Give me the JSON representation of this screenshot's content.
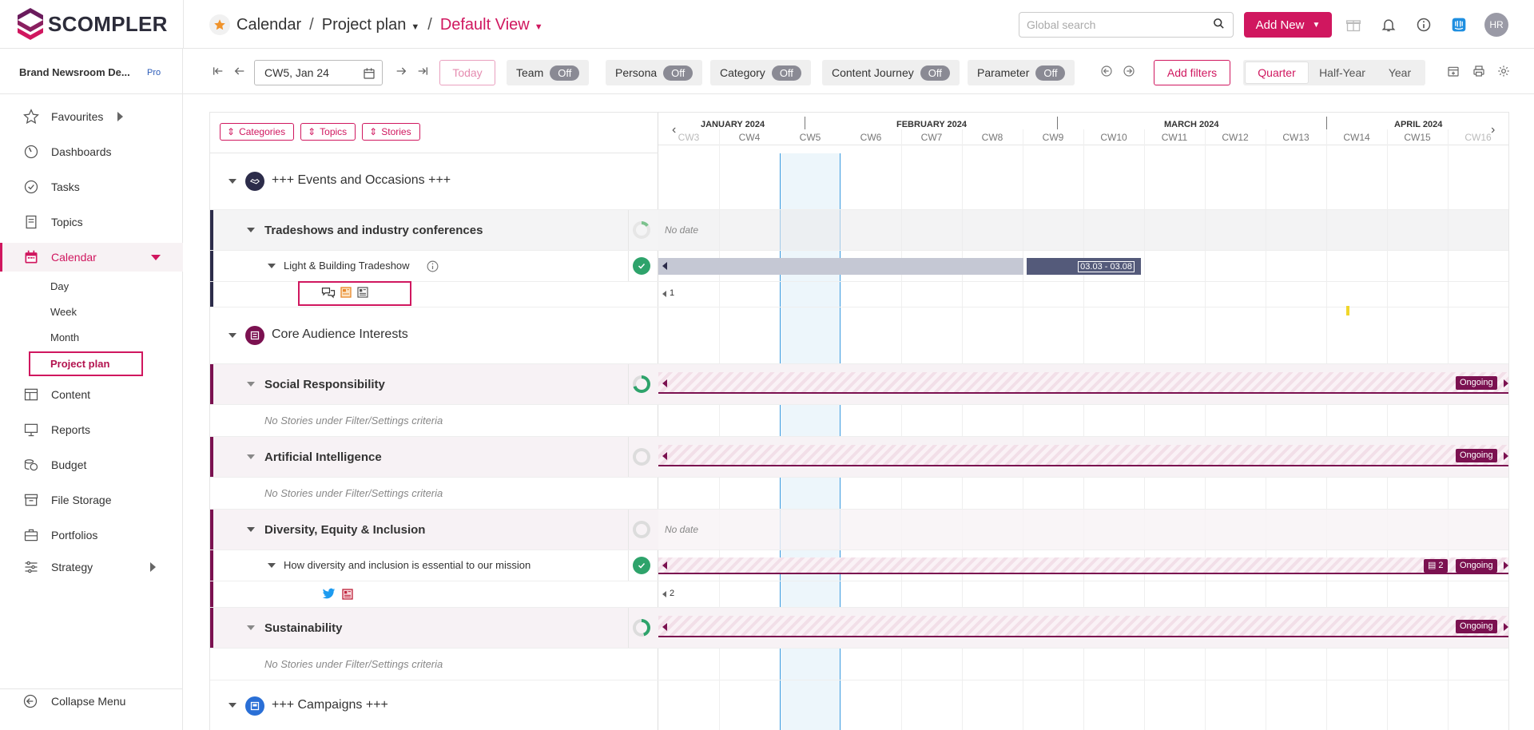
{
  "app": {
    "logo_text": "SCOMPLER",
    "brand_color": "#d0175f"
  },
  "breadcrumb": {
    "section": "Calendar",
    "page": "Project plan",
    "view": "Default View",
    "separator": "/"
  },
  "search": {
    "placeholder": "Global search"
  },
  "header": {
    "add_new_label": "Add New",
    "avatar_initials": "HR"
  },
  "sidebar": {
    "workspace": "Brand Newsroom De...",
    "plan_badge": "Pro",
    "items": [
      {
        "label": "Favourites",
        "icon": "star-icon"
      },
      {
        "label": "Dashboards",
        "icon": "gauge-icon"
      },
      {
        "label": "Tasks",
        "icon": "check-circle-icon"
      },
      {
        "label": "Topics",
        "icon": "document-icon"
      },
      {
        "label": "Calendar",
        "icon": "calendar-icon"
      },
      {
        "label": "Content",
        "icon": "table-icon"
      },
      {
        "label": "Reports",
        "icon": "presentation-icon"
      },
      {
        "label": "Budget",
        "icon": "coins-icon"
      },
      {
        "label": "File Storage",
        "icon": "archive-icon"
      },
      {
        "label": "Portfolios",
        "icon": "briefcase-icon"
      },
      {
        "label": "Strategy",
        "icon": "sliders-icon"
      }
    ],
    "calendar_sub": [
      "Day",
      "Week",
      "Month",
      "Project plan"
    ],
    "collapse_label": "Collapse Menu"
  },
  "toolbar": {
    "date_value": "CW5, Jan 24",
    "today_label": "Today",
    "toggles": [
      {
        "label": "Team",
        "state": "Off"
      },
      {
        "label": "Persona",
        "state": "Off"
      },
      {
        "label": "Category",
        "state": "Off"
      },
      {
        "label": "Content Journey",
        "state": "Off"
      },
      {
        "label": "Parameter",
        "state": "Off"
      }
    ],
    "add_filters_label": "Add filters",
    "ranges": [
      "Quarter",
      "Half-Year",
      "Year"
    ],
    "active_range": "Quarter"
  },
  "chips": [
    "Categories",
    "Topics",
    "Stories"
  ],
  "timeline": {
    "months": [
      "JANUARY 2024",
      "FEBRUARY 2024",
      "MARCH 2024",
      "APRIL 2024"
    ],
    "weeks": [
      "CW3",
      "CW4",
      "CW5",
      "CW6",
      "CW7",
      "CW8",
      "CW9",
      "CW10",
      "CW11",
      "CW12",
      "CW13",
      "CW14",
      "CW15",
      "CW16"
    ],
    "current_week": "CW5"
  },
  "rows": {
    "g1": {
      "label": "+++ Events and Occasions +++"
    },
    "t1": {
      "label": "Tradeshows and industry conferences",
      "gantt": "No date"
    },
    "s1": {
      "label": "Light & Building Tradeshow",
      "bar_label": "03.03 - 03.08"
    },
    "s1_count": "1",
    "g2": {
      "label": "Core Audience Interests"
    },
    "t2": {
      "label": "Social Responsibility",
      "badge": "Ongoing"
    },
    "t2_empty": "No Stories under Filter/Settings criteria",
    "t3": {
      "label": "Artificial Intelligence",
      "badge": "Ongoing"
    },
    "t3_empty": "No Stories under Filter/Settings criteria",
    "t4": {
      "label": "Diversity, Equity & Inclusion",
      "gantt": "No date"
    },
    "s2": {
      "label": "How diversity and inclusion is essential to our mission",
      "count_badge": "2",
      "badge": "Ongoing"
    },
    "s2_count": "2",
    "t5": {
      "label": "Sustainability",
      "badge": "Ongoing"
    },
    "t5_empty": "No Stories under Filter/Settings criteria",
    "g3": {
      "label": "+++ Campaigns +++"
    }
  },
  "colors": {
    "accent": "#d0175f",
    "topic_band": "#7b1150",
    "event_band": "#2c2c4a",
    "ongoing": "#7b1150",
    "today_line": "#1f8fe0"
  }
}
